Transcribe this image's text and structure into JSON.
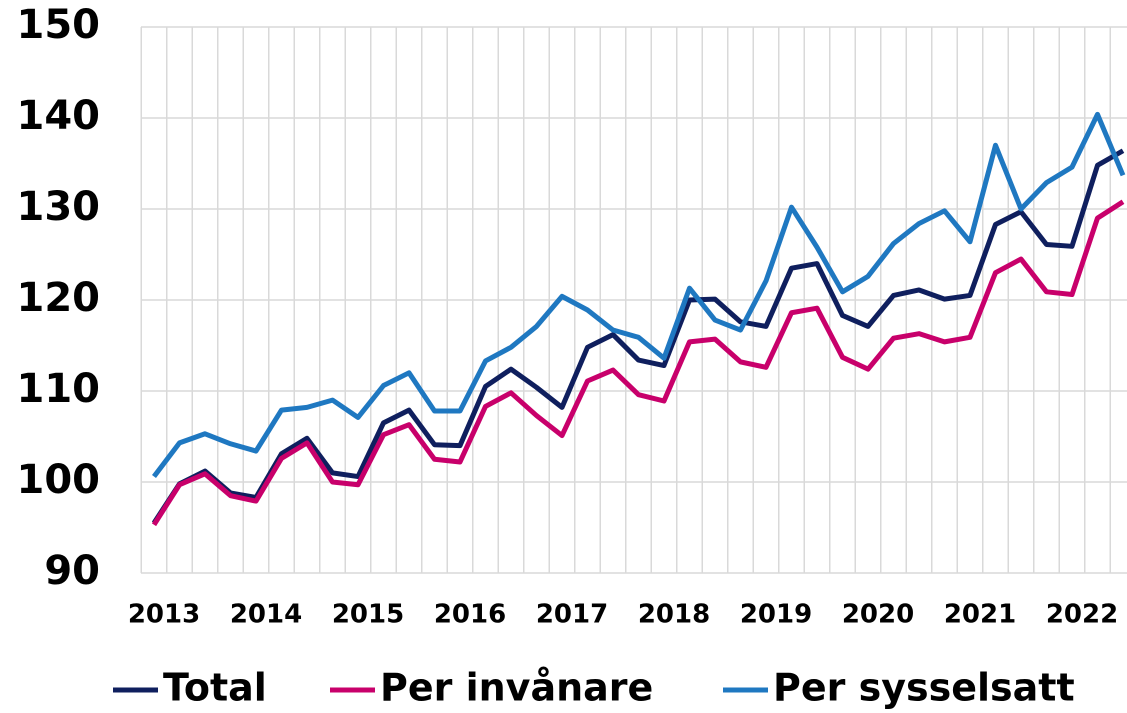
{
  "chart_data": {
    "type": "line",
    "categories": [
      "2013",
      null,
      null,
      null,
      "2014",
      null,
      null,
      null,
      "2015",
      null,
      null,
      null,
      "2016",
      null,
      null,
      null,
      "2017",
      null,
      null,
      null,
      "2018",
      null,
      null,
      null,
      "2019",
      null,
      null,
      null,
      "2020",
      null,
      null,
      null,
      "2021",
      null,
      null,
      null,
      "2022",
      null,
      null
    ],
    "series": [
      {
        "name": "Total",
        "color": "#0f1f5e",
        "values": [
          95.5,
          99.8,
          101.2,
          98.8,
          98.3,
          103.1,
          104.8,
          101.0,
          100.6,
          106.5,
          107.9,
          104.1,
          104.0,
          110.5,
          112.4,
          110.4,
          108.2,
          114.8,
          116.2,
          113.4,
          112.8,
          120.0,
          120.1,
          117.6,
          117.1,
          123.5,
          124.0,
          118.3,
          117.1,
          120.5,
          121.1,
          120.1,
          120.5,
          128.3,
          129.7,
          126.1,
          125.9,
          134.8,
          136.4
        ]
      },
      {
        "name": "Per invånare",
        "color": "#c8006b",
        "values": [
          95.3,
          99.7,
          100.9,
          98.5,
          97.9,
          102.6,
          104.3,
          100.0,
          99.7,
          105.2,
          106.3,
          102.5,
          102.2,
          108.3,
          109.8,
          107.3,
          105.1,
          111.1,
          112.3,
          109.6,
          108.9,
          115.4,
          115.7,
          113.2,
          112.6,
          118.6,
          119.1,
          113.7,
          112.4,
          115.8,
          116.3,
          115.4,
          115.9,
          123.0,
          124.5,
          120.9,
          120.6,
          129.0,
          130.8
        ]
      },
      {
        "name": "Per sysselsatt",
        "color": "#1f78c1",
        "values": [
          100.6,
          104.3,
          105.3,
          104.2,
          103.4,
          107.9,
          108.2,
          109.0,
          107.1,
          110.6,
          112.0,
          107.8,
          107.8,
          113.3,
          114.8,
          117.1,
          120.4,
          118.9,
          116.7,
          115.9,
          113.6,
          121.3,
          117.8,
          116.7,
          122.1,
          130.2,
          125.8,
          120.9,
          122.6,
          126.2,
          128.4,
          129.8,
          126.4,
          137.0,
          130.0,
          132.9,
          134.6,
          140.4,
          133.7
        ]
      }
    ],
    "ylim": [
      90,
      150
    ],
    "yticks": [
      90,
      100,
      110,
      120,
      130,
      140,
      150
    ],
    "grid": true
  }
}
